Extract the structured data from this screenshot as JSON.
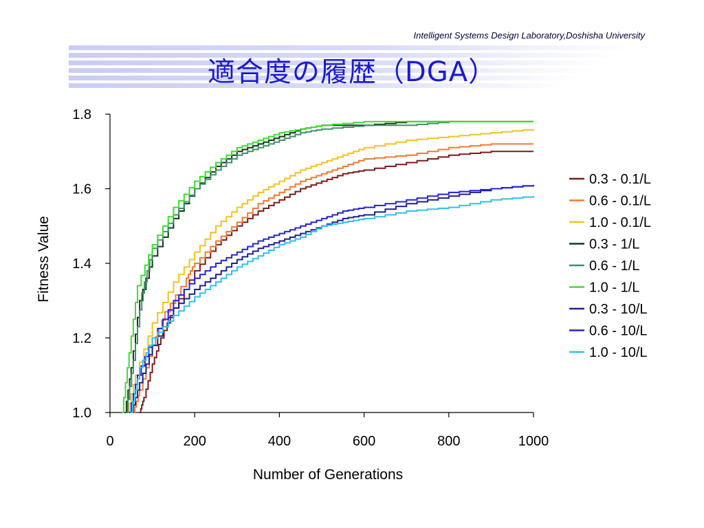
{
  "header": {
    "lab": "Intelligent Systems Design Laboratory,Doshisha University",
    "title": "適合度の履歴（DGA）"
  },
  "chart_data": {
    "type": "line",
    "title": "",
    "xlabel": "Number of Generations",
    "ylabel": "Fitness Value",
    "xlim": [
      0,
      1000
    ],
    "ylim": [
      1.0,
      1.8
    ],
    "xticks": [
      "0",
      "200",
      "400",
      "600",
      "800",
      "1000"
    ],
    "yticks": [
      "1.0",
      "1.2",
      "1.4",
      "1.6",
      "1.8"
    ],
    "legend_position": "right",
    "grid": false,
    "series": [
      {
        "name": "0.3 - 0.1/L",
        "color": "#7a1a1a",
        "points": [
          [
            70,
            1.0
          ],
          [
            80,
            1.04
          ],
          [
            100,
            1.13
          ],
          [
            120,
            1.2
          ],
          [
            150,
            1.28
          ],
          [
            200,
            1.38
          ],
          [
            250,
            1.45
          ],
          [
            300,
            1.5
          ],
          [
            350,
            1.54
          ],
          [
            400,
            1.57
          ],
          [
            450,
            1.6
          ],
          [
            500,
            1.62
          ],
          [
            550,
            1.64
          ],
          [
            600,
            1.65
          ],
          [
            700,
            1.67
          ],
          [
            800,
            1.69
          ],
          [
            900,
            1.7
          ],
          [
            1000,
            1.7
          ]
        ]
      },
      {
        "name": "0.6 - 0.1/L",
        "color": "#f07a30",
        "points": [
          [
            55,
            1.0
          ],
          [
            70,
            1.06
          ],
          [
            100,
            1.18
          ],
          [
            130,
            1.27
          ],
          [
            180,
            1.36
          ],
          [
            200,
            1.4
          ],
          [
            250,
            1.46
          ],
          [
            300,
            1.51
          ],
          [
            350,
            1.56
          ],
          [
            400,
            1.59
          ],
          [
            450,
            1.62
          ],
          [
            500,
            1.64
          ],
          [
            550,
            1.66
          ],
          [
            600,
            1.68
          ],
          [
            700,
            1.69
          ],
          [
            800,
            1.71
          ],
          [
            900,
            1.72
          ],
          [
            1000,
            1.72
          ]
        ]
      },
      {
        "name": "1.0 - 0.1/L",
        "color": "#f2c21e",
        "points": [
          [
            40,
            1.0
          ],
          [
            60,
            1.1
          ],
          [
            100,
            1.24
          ],
          [
            150,
            1.35
          ],
          [
            200,
            1.43
          ],
          [
            250,
            1.5
          ],
          [
            300,
            1.55
          ],
          [
            350,
            1.59
          ],
          [
            400,
            1.62
          ],
          [
            450,
            1.65
          ],
          [
            500,
            1.67
          ],
          [
            550,
            1.69
          ],
          [
            600,
            1.71
          ],
          [
            700,
            1.73
          ],
          [
            800,
            1.74
          ],
          [
            900,
            1.75
          ],
          [
            1000,
            1.76
          ]
        ]
      },
      {
        "name": "0.3 - 1/L",
        "color": "#0f3a15",
        "points": [
          [
            35,
            1.0
          ],
          [
            50,
            1.12
          ],
          [
            70,
            1.3
          ],
          [
            100,
            1.42
          ],
          [
            150,
            1.52
          ],
          [
            200,
            1.6
          ],
          [
            250,
            1.66
          ],
          [
            300,
            1.7
          ],
          [
            350,
            1.72
          ],
          [
            400,
            1.74
          ],
          [
            450,
            1.76
          ],
          [
            500,
            1.77
          ],
          [
            600,
            1.77
          ],
          [
            700,
            1.78
          ],
          [
            800,
            1.78
          ],
          [
            1000,
            1.78
          ]
        ]
      },
      {
        "name": "0.6 - 1/L",
        "color": "#3f8f6c",
        "points": [
          [
            38,
            1.0
          ],
          [
            55,
            1.14
          ],
          [
            75,
            1.32
          ],
          [
            100,
            1.44
          ],
          [
            150,
            1.53
          ],
          [
            200,
            1.6
          ],
          [
            250,
            1.65
          ],
          [
            300,
            1.69
          ],
          [
            350,
            1.71
          ],
          [
            400,
            1.73
          ],
          [
            450,
            1.75
          ],
          [
            500,
            1.76
          ],
          [
            600,
            1.77
          ],
          [
            700,
            1.77
          ],
          [
            800,
            1.78
          ],
          [
            1000,
            1.78
          ]
        ]
      },
      {
        "name": "1.0 - 1/L",
        "color": "#3ddc2f",
        "points": [
          [
            28,
            1.0
          ],
          [
            45,
            1.16
          ],
          [
            65,
            1.34
          ],
          [
            100,
            1.45
          ],
          [
            150,
            1.55
          ],
          [
            200,
            1.62
          ],
          [
            250,
            1.67
          ],
          [
            300,
            1.71
          ],
          [
            350,
            1.73
          ],
          [
            400,
            1.75
          ],
          [
            450,
            1.76
          ],
          [
            500,
            1.77
          ],
          [
            600,
            1.78
          ],
          [
            800,
            1.78
          ],
          [
            1000,
            1.78
          ]
        ]
      },
      {
        "name": "0.3 - 10/L",
        "color": "#1e1e8c",
        "points": [
          [
            50,
            1.0
          ],
          [
            70,
            1.08
          ],
          [
            100,
            1.18
          ],
          [
            150,
            1.28
          ],
          [
            200,
            1.33
          ],
          [
            250,
            1.37
          ],
          [
            300,
            1.41
          ],
          [
            350,
            1.44
          ],
          [
            400,
            1.46
          ],
          [
            450,
            1.48
          ],
          [
            500,
            1.5
          ],
          [
            550,
            1.52
          ],
          [
            600,
            1.53
          ],
          [
            700,
            1.56
          ],
          [
            800,
            1.58
          ],
          [
            900,
            1.6
          ],
          [
            1000,
            1.61
          ]
        ]
      },
      {
        "name": "0.6 - 10/L",
        "color": "#2222dd",
        "points": [
          [
            45,
            1.0
          ],
          [
            65,
            1.1
          ],
          [
            100,
            1.2
          ],
          [
            150,
            1.3
          ],
          [
            200,
            1.36
          ],
          [
            250,
            1.4
          ],
          [
            300,
            1.43
          ],
          [
            350,
            1.46
          ],
          [
            400,
            1.48
          ],
          [
            450,
            1.5
          ],
          [
            500,
            1.52
          ],
          [
            550,
            1.54
          ],
          [
            600,
            1.55
          ],
          [
            700,
            1.57
          ],
          [
            800,
            1.59
          ],
          [
            900,
            1.6
          ],
          [
            1000,
            1.61
          ]
        ]
      },
      {
        "name": "1.0 - 10/L",
        "color": "#2cc0ee",
        "points": [
          [
            48,
            1.0
          ],
          [
            70,
            1.12
          ],
          [
            100,
            1.2
          ],
          [
            150,
            1.26
          ],
          [
            200,
            1.31
          ],
          [
            250,
            1.35
          ],
          [
            300,
            1.39
          ],
          [
            350,
            1.42
          ],
          [
            400,
            1.45
          ],
          [
            450,
            1.47
          ],
          [
            500,
            1.5
          ],
          [
            550,
            1.51
          ],
          [
            600,
            1.52
          ],
          [
            700,
            1.54
          ],
          [
            800,
            1.55
          ],
          [
            900,
            1.57
          ],
          [
            1000,
            1.58
          ]
        ]
      }
    ]
  }
}
